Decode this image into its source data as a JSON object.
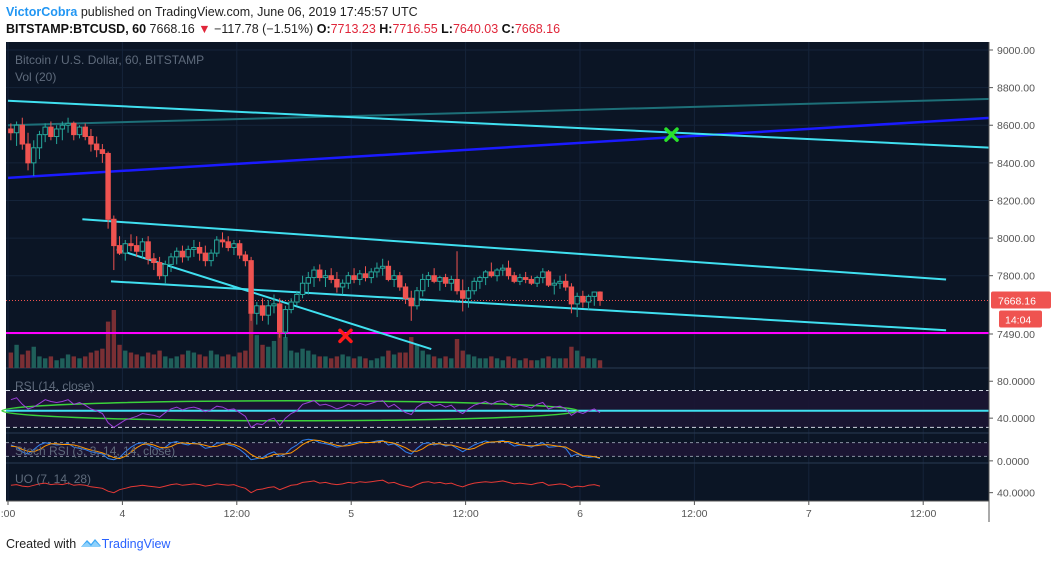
{
  "header": {
    "author": "VictorCobra",
    "published": "published on TradingView.com, June 06, 2019 17:45:57 UTC",
    "symbol": "BITSTAMP:BTCUSD, 60",
    "last": "7668.16",
    "arrow": "▼",
    "change": "−117.78 (−1.51%)",
    "o_label": "O:",
    "o_value": "7713.23",
    "h_label": "H:",
    "h_value": "7716.55",
    "l_label": "L:",
    "l_value": "7640.03",
    "c_label": "C:",
    "c_value": "7668.16"
  },
  "legend": {
    "title": "Bitcoin / U.S. Dollar, 60, BITSTAMP",
    "volume": "Vol (20)",
    "rsi": "RSI (14, close)",
    "stoch": "Stoch RSI (3, 3, 14, 14, close)",
    "uo": "UO (7, 14, 28)"
  },
  "footer": {
    "created": "Created with",
    "brand": "TradingView"
  },
  "colors": {
    "up": "#26a69a",
    "down": "#ef5350",
    "cyan_line": "#40e0f0",
    "blue_line": "#1a1aff",
    "teal_line": "#1d6f78",
    "magenta": "#ff00ff",
    "rsi": "#9b3fd8",
    "panel_bg": "#0c1a2e"
  },
  "chart_data": [
    {
      "type": "candlestick",
      "title": "Bitcoin / U.S. Dollar, 60, BITSTAMP",
      "ylim": [
        7400,
        9050
      ],
      "y_ticks": [
        9000,
        8800,
        8600,
        8400,
        8200,
        8000,
        7800,
        7490
      ],
      "y_tick_labels": [
        "9000.00",
        "8800.00",
        "8600.00",
        "8400.00",
        "8200.00",
        "8000.00",
        "7800.00",
        "7490.00"
      ],
      "x_range": [
        0,
        172
      ],
      "x_ticks": [
        0,
        20,
        40,
        60,
        80,
        100,
        120,
        140,
        160
      ],
      "x_tick_labels": [
        ":00",
        "4",
        "12:00",
        "5",
        "12:00",
        "6",
        "12:00",
        "7",
        "12:00"
      ],
      "last_price": 7668.16,
      "last_price_label": "7668.16",
      "countdown": "14:04",
      "candles": [
        [
          8580,
          8610,
          8520,
          8560
        ],
        [
          8560,
          8620,
          8490,
          8600
        ],
        [
          8600,
          8640,
          8470,
          8500
        ],
        [
          8500,
          8560,
          8360,
          8400
        ],
        [
          8400,
          8520,
          8330,
          8480
        ],
        [
          8480,
          8570,
          8420,
          8550
        ],
        [
          8550,
          8610,
          8510,
          8590
        ],
        [
          8590,
          8620,
          8520,
          8540
        ],
        [
          8540,
          8600,
          8500,
          8580
        ],
        [
          8580,
          8620,
          8520,
          8600
        ],
        [
          8600,
          8640,
          8560,
          8610
        ],
        [
          8610,
          8620,
          8520,
          8550
        ],
        [
          8550,
          8600,
          8530,
          8590
        ],
        [
          8590,
          8610,
          8520,
          8540
        ],
        [
          8540,
          8580,
          8460,
          8500
        ],
        [
          8500,
          8540,
          8430,
          8470
        ],
        [
          8470,
          8500,
          8400,
          8450
        ],
        [
          8450,
          8460,
          8050,
          8100
        ],
        [
          8100,
          8120,
          7830,
          7960
        ],
        [
          7960,
          8010,
          7910,
          7920
        ],
        [
          7920,
          7990,
          7880,
          7970
        ],
        [
          7970,
          8020,
          7930,
          7960
        ],
        [
          7960,
          8010,
          7900,
          7930
        ],
        [
          7930,
          8000,
          7890,
          7980
        ],
        [
          7980,
          8010,
          7860,
          7890
        ],
        [
          7890,
          7920,
          7830,
          7870
        ],
        [
          7870,
          7900,
          7780,
          7800
        ],
        [
          7800,
          7880,
          7760,
          7860
        ],
        [
          7860,
          7920,
          7820,
          7900
        ],
        [
          7900,
          7950,
          7860,
          7930
        ],
        [
          7930,
          7960,
          7870,
          7900
        ],
        [
          7900,
          7960,
          7880,
          7940
        ],
        [
          7940,
          7990,
          7900,
          7950
        ],
        [
          7950,
          7980,
          7880,
          7920
        ],
        [
          7920,
          7960,
          7850,
          7880
        ],
        [
          7880,
          7940,
          7850,
          7920
        ],
        [
          7920,
          8010,
          7900,
          7990
        ],
        [
          7990,
          8030,
          7950,
          7980
        ],
        [
          7980,
          8010,
          7930,
          7950
        ],
        [
          7950,
          7990,
          7910,
          7970
        ],
        [
          7970,
          7990,
          7890,
          7910
        ],
        [
          7910,
          7930,
          7850,
          7880
        ],
        [
          7880,
          7900,
          7560,
          7600
        ],
        [
          7600,
          7660,
          7540,
          7640
        ],
        [
          7640,
          7680,
          7560,
          7590
        ],
        [
          7590,
          7670,
          7540,
          7640
        ],
        [
          7640,
          7700,
          7600,
          7650
        ],
        [
          7650,
          7680,
          7470,
          7500
        ],
        [
          7500,
          7640,
          7470,
          7620
        ],
        [
          7620,
          7680,
          7600,
          7660
        ],
        [
          7660,
          7720,
          7640,
          7700
        ],
        [
          7700,
          7800,
          7680,
          7760
        ],
        [
          7760,
          7820,
          7700,
          7790
        ],
        [
          7790,
          7850,
          7740,
          7830
        ],
        [
          7830,
          7860,
          7770,
          7790
        ],
        [
          7790,
          7830,
          7740,
          7800
        ],
        [
          7800,
          7840,
          7760,
          7780
        ],
        [
          7780,
          7820,
          7710,
          7740
        ],
        [
          7740,
          7780,
          7700,
          7760
        ],
        [
          7760,
          7820,
          7730,
          7800
        ],
        [
          7800,
          7840,
          7760,
          7780
        ],
        [
          7780,
          7830,
          7750,
          7810
        ],
        [
          7810,
          7850,
          7770,
          7790
        ],
        [
          7790,
          7840,
          7760,
          7820
        ],
        [
          7820,
          7870,
          7790,
          7840
        ],
        [
          7840,
          7890,
          7800,
          7850
        ],
        [
          7850,
          7880,
          7770,
          7780
        ],
        [
          7780,
          7830,
          7740,
          7800
        ],
        [
          7800,
          7820,
          7720,
          7740
        ],
        [
          7740,
          7760,
          7650,
          7680
        ],
        [
          7680,
          7720,
          7560,
          7640
        ],
        [
          7640,
          7740,
          7620,
          7720
        ],
        [
          7720,
          7810,
          7690,
          7780
        ],
        [
          7780,
          7820,
          7740,
          7800
        ],
        [
          7800,
          7840,
          7760,
          7770
        ],
        [
          7770,
          7800,
          7720,
          7790
        ],
        [
          7790,
          7810,
          7740,
          7760
        ],
        [
          7760,
          7800,
          7720,
          7780
        ],
        [
          7780,
          7930,
          7700,
          7720
        ],
        [
          7720,
          7780,
          7610,
          7680
        ],
        [
          7680,
          7740,
          7630,
          7720
        ],
        [
          7720,
          7790,
          7700,
          7770
        ],
        [
          7770,
          7800,
          7730,
          7790
        ],
        [
          7790,
          7830,
          7750,
          7820
        ],
        [
          7820,
          7870,
          7790,
          7800
        ],
        [
          7800,
          7840,
          7770,
          7830
        ],
        [
          7830,
          7860,
          7800,
          7840
        ],
        [
          7840,
          7880,
          7780,
          7800
        ],
        [
          7800,
          7820,
          7760,
          7770
        ],
        [
          7770,
          7810,
          7750,
          7790
        ],
        [
          7790,
          7820,
          7760,
          7780
        ],
        [
          7780,
          7800,
          7750,
          7760
        ],
        [
          7760,
          7800,
          7740,
          7790
        ],
        [
          7790,
          7840,
          7760,
          7820
        ],
        [
          7820,
          7830,
          7740,
          7750
        ],
        [
          7750,
          7780,
          7700,
          7760
        ],
        [
          7760,
          7800,
          7730,
          7770
        ],
        [
          7770,
          7810,
          7720,
          7740
        ],
        [
          7740,
          7760,
          7600,
          7650
        ],
        [
          7650,
          7710,
          7580,
          7690
        ],
        [
          7690,
          7720,
          7630,
          7660
        ],
        [
          7660,
          7700,
          7620,
          7690
        ],
        [
          7690,
          7716,
          7640,
          7713
        ],
        [
          7713,
          7717,
          7640,
          7668
        ]
      ],
      "volume": [
        40,
        60,
        35,
        45,
        55,
        30,
        25,
        30,
        20,
        25,
        35,
        30,
        25,
        30,
        40,
        45,
        50,
        120,
        150,
        60,
        45,
        40,
        35,
        30,
        40,
        35,
        45,
        30,
        25,
        30,
        35,
        45,
        40,
        35,
        30,
        45,
        35,
        30,
        35,
        30,
        40,
        45,
        140,
        85,
        60,
        55,
        70,
        95,
        80,
        45,
        40,
        50,
        45,
        35,
        30,
        30,
        25,
        30,
        35,
        30,
        25,
        30,
        25,
        20,
        25,
        30,
        45,
        35,
        40,
        40,
        80,
        60,
        45,
        35,
        30,
        25,
        30,
        25,
        75,
        45,
        35,
        30,
        25,
        25,
        30,
        25,
        20,
        30,
        25,
        20,
        25,
        20,
        20,
        25,
        30,
        25,
        25,
        25,
        55,
        45,
        30,
        25,
        25,
        20
      ],
      "levels": [
        7495,
        7668.16
      ],
      "trendlines": [
        {
          "color": "teal",
          "from": [
            0,
            8600
          ],
          "to": [
            172,
            8740
          ]
        },
        {
          "color": "blue",
          "from": [
            0,
            8320
          ],
          "to": [
            172,
            8640
          ]
        },
        {
          "color": "cyan",
          "from": [
            0,
            8730
          ],
          "to": [
            172,
            8480
          ]
        },
        {
          "color": "cyan",
          "from": [
            13,
            8100
          ],
          "to": [
            164,
            7780
          ]
        },
        {
          "color": "cyan",
          "from": [
            18,
            7770
          ],
          "to": [
            164,
            7510
          ]
        },
        {
          "color": "cyan",
          "from": [
            19,
            7940
          ],
          "to": [
            74,
            7410
          ]
        }
      ],
      "markers": [
        {
          "symbol": "check",
          "color": "green",
          "x": 116,
          "y": 8550
        },
        {
          "symbol": "x",
          "color": "red",
          "x": 59,
          "y": 7480
        }
      ]
    },
    {
      "type": "line",
      "name": "RSI (14, close)",
      "ylim": [
        25,
        90
      ],
      "y_ticks": [
        80,
        40
      ],
      "y_tick_labels": [
        "80.0000",
        "40.0000"
      ],
      "levels": [
        70,
        30
      ],
      "values": [
        60,
        62,
        55,
        50,
        52,
        56,
        60,
        58,
        57,
        58,
        60,
        55,
        57,
        54,
        50,
        48,
        45,
        35,
        30,
        34,
        38,
        40,
        42,
        45,
        44,
        43,
        41,
        46,
        50,
        52,
        49,
        51,
        52,
        50,
        47,
        49,
        53,
        52,
        49,
        50,
        46,
        42,
        30,
        34,
        33,
        38,
        40,
        32,
        40,
        45,
        48,
        55,
        57,
        59,
        54,
        55,
        53,
        50,
        52,
        55,
        53,
        56,
        54,
        56,
        58,
        59,
        52,
        55,
        50,
        46,
        44,
        52,
        56,
        57,
        53,
        55,
        52,
        54,
        48,
        45,
        50,
        54,
        56,
        58,
        55,
        58,
        59,
        55,
        52,
        54,
        53,
        51,
        55,
        57,
        50,
        52,
        53,
        50,
        43,
        47,
        45,
        48,
        50,
        46
      ]
    },
    {
      "type": "line",
      "name": "Stoch RSI (3, 3, 14, 14, close)",
      "ylim": [
        -5,
        105
      ],
      "y_ticks": [
        0
      ],
      "y_tick_labels": [
        "0.0000"
      ],
      "levels": [
        80,
        20
      ],
      "k": [
        70,
        60,
        40,
        30,
        50,
        70,
        80,
        75,
        70,
        72,
        76,
        60,
        55,
        50,
        40,
        35,
        30,
        10,
        5,
        15,
        40,
        60,
        75,
        80,
        70,
        60,
        50,
        60,
        80,
        85,
        75,
        70,
        80,
        72,
        55,
        60,
        78,
        80,
        70,
        65,
        50,
        30,
        5,
        10,
        15,
        30,
        40,
        20,
        30,
        55,
        70,
        90,
        95,
        92,
        80,
        75,
        70,
        60,
        65,
        75,
        80,
        85,
        78,
        82,
        88,
        90,
        70,
        75,
        60,
        40,
        30,
        55,
        75,
        80,
        70,
        75,
        65,
        70,
        55,
        40,
        55,
        70,
        80,
        88,
        80,
        85,
        90,
        80,
        65,
        70,
        68,
        60,
        72,
        80,
        60,
        62,
        66,
        55,
        20,
        30,
        20,
        15,
        18,
        10
      ],
      "d": [
        65,
        62,
        50,
        42,
        40,
        50,
        66,
        75,
        75,
        72,
        72,
        70,
        64,
        55,
        48,
        42,
        35,
        25,
        15,
        10,
        20,
        38,
        58,
        72,
        75,
        70,
        60,
        57,
        63,
        75,
        80,
        77,
        75,
        74,
        68,
        62,
        64,
        73,
        76,
        72,
        62,
        48,
        28,
        15,
        10,
        18,
        28,
        30,
        30,
        35,
        52,
        72,
        85,
        92,
        89,
        82,
        75,
        68,
        65,
        67,
        73,
        80,
        81,
        81,
        83,
        87,
        82,
        78,
        68,
        58,
        43,
        42,
        53,
        70,
        75,
        75,
        70,
        70,
        63,
        55,
        50,
        55,
        68,
        79,
        83,
        84,
        85,
        85,
        78,
        72,
        68,
        66,
        67,
        71,
        71,
        67,
        63,
        61,
        47,
        35,
        23,
        22,
        18,
        14
      ]
    },
    {
      "type": "line",
      "name": "UO (7, 14, 28)",
      "ylim": [
        30,
        75
      ],
      "y_ticks": [
        40
      ],
      "y_tick_labels": [
        "40.0000"
      ],
      "values": [
        50,
        51,
        49,
        48,
        50,
        52,
        53,
        51,
        52,
        51,
        53,
        50,
        51,
        50,
        48,
        47,
        46,
        42,
        40,
        44,
        46,
        48,
        49,
        50,
        49,
        48,
        47,
        49,
        51,
        52,
        50,
        51,
        52,
        51,
        49,
        50,
        52,
        51,
        50,
        51,
        48,
        46,
        40,
        44,
        45,
        47,
        48,
        44,
        47,
        50,
        51,
        54,
        55,
        56,
        53,
        54,
        52,
        51,
        52,
        54,
        53,
        55,
        54,
        55,
        56,
        57,
        53,
        54,
        51,
        49,
        47,
        51,
        54,
        55,
        53,
        54,
        52,
        53,
        50,
        48,
        51,
        53,
        54,
        55,
        54,
        55,
        56,
        54,
        52,
        53,
        52,
        51,
        53,
        54,
        50,
        51,
        52,
        51,
        47,
        49,
        48,
        50,
        51,
        49
      ]
    }
  ]
}
